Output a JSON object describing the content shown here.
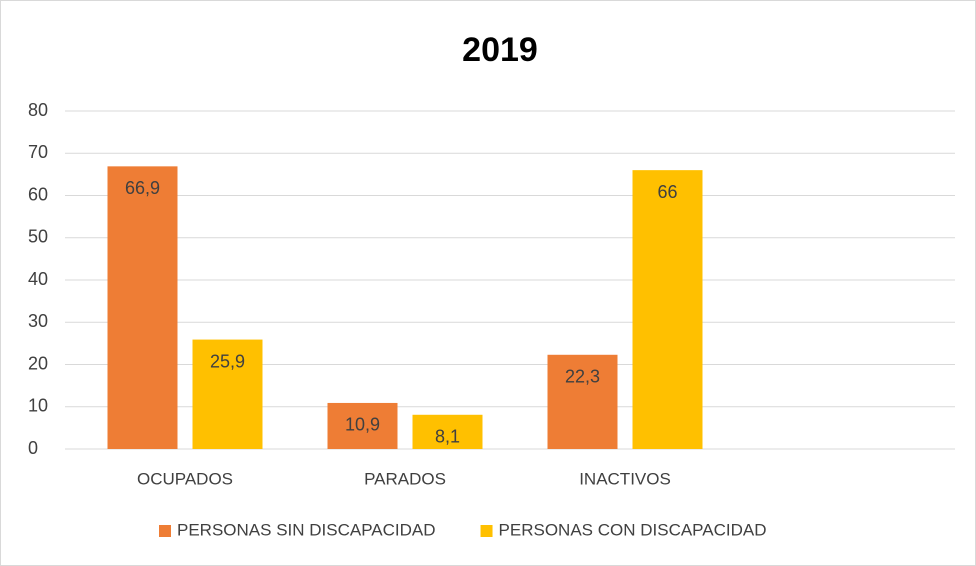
{
  "chart_data": {
    "type": "bar",
    "title": "2019",
    "categories": [
      "OCUPADOS",
      "PARADOS",
      "INACTIVOS",
      null
    ],
    "series": [
      {
        "name": "PERSONAS SIN DISCAPACIDAD",
        "color": "#ee7d35",
        "values": [
          66.9,
          10.9,
          22.3,
          null
        ],
        "value_labels": [
          "66,9",
          "10,9",
          "22,3",
          null
        ]
      },
      {
        "name": "PERSONAS CON DISCAPACIDAD",
        "color": "#ffc000",
        "values": [
          25.9,
          8.1,
          66,
          null
        ],
        "value_labels": [
          "25,9",
          "8,1",
          "66",
          null
        ]
      }
    ],
    "ylim": [
      0,
      80
    ],
    "yticks": [
      0,
      10,
      20,
      30,
      40,
      50,
      60,
      70,
      80
    ],
    "grid": true,
    "legend": "bottom"
  }
}
